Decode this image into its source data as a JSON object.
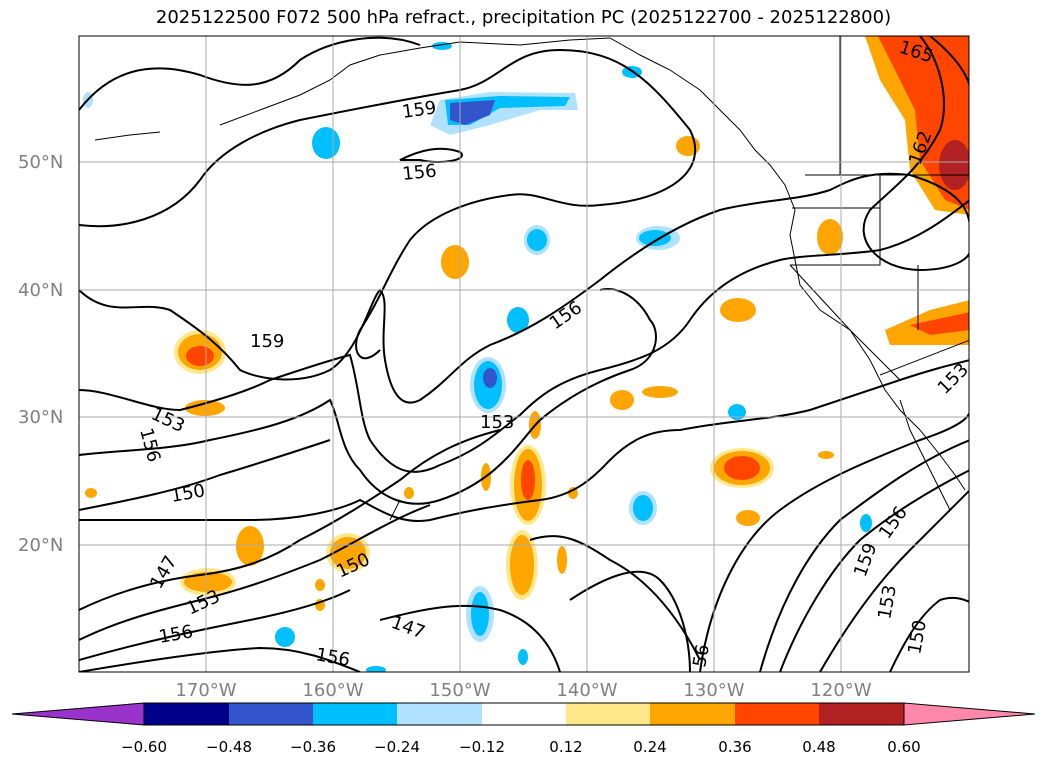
{
  "title": "2025122500 F072 500 hPa refract., precipitation PC (2025122700 - 2025122800)",
  "lat_labels": [
    "50°N",
    "40°N",
    "30°N",
    "20°N"
  ],
  "lon_labels": [
    "170°W",
    "160°W",
    "150°W",
    "140°W",
    "130°W",
    "120°W"
  ],
  "contour_labels": {
    "c159_top": "159",
    "c156_top": "156",
    "c165": "165",
    "c162": "162",
    "c159_mid": "159",
    "c156_mid": "156",
    "c153_mid": "153",
    "c153_left": "153",
    "c156_left": "156",
    "c150_left": "150",
    "c147_low": "147",
    "c153_low": "153",
    "c156_low": "156",
    "c150_low": "150",
    "c147_bot": "147",
    "c156_bot": "156",
    "c56_bot": "56",
    "c159_se": "159",
    "c156_se": "156",
    "c153_se": "153",
    "c150_se": "150",
    "c153_e": "153"
  },
  "colorbar": {
    "ticks": [
      "−0.60",
      "−0.48",
      "−0.36",
      "−0.24",
      "−0.12",
      "0.12",
      "0.24",
      "0.36",
      "0.48",
      "0.60"
    ],
    "colors": [
      "#9933cc",
      "#00008b",
      "#3355cc",
      "#00bfff",
      "#b0e2ff",
      "#ffffff",
      "#ffe88a",
      "#ffa500",
      "#ff4500",
      "#b22222",
      "#ff88aa"
    ]
  },
  "colors": {
    "frame": "#000000",
    "grid": "#aaaaaa",
    "tick_label": "#808080"
  }
}
